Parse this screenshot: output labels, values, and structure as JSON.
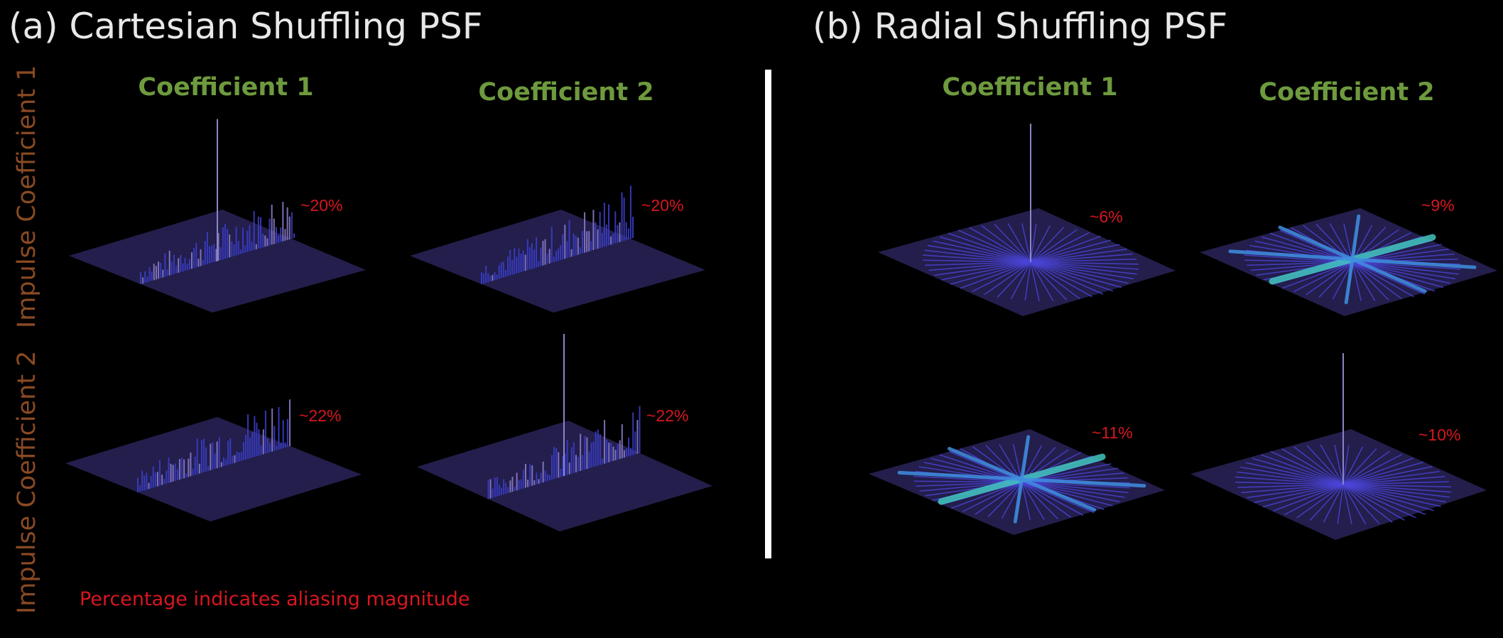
{
  "panels": {
    "a": {
      "title": "(a) Cartesian Shuffling PSF"
    },
    "b": {
      "title": "(b) Radial Shuffling PSF"
    }
  },
  "columns": {
    "coef1": "Coefficient 1",
    "coef2": "Coefficient 2"
  },
  "rows": {
    "impulse1": "Impulse Coefficient 1",
    "impulse2": "Impulse Coefficient 2"
  },
  "note": "Percentage indicates aliasing magnitude",
  "aliasing": {
    "a_r1_c1": "~20%",
    "a_r1_c2": "~20%",
    "a_r2_c1": "~22%",
    "a_r2_c2": "~22%",
    "b_r1_c1": "~6%",
    "b_r1_c2": "~9%",
    "b_r2_c1": "~11%",
    "b_r2_c2": "~10%"
  },
  "colors": {
    "background": "#000000",
    "title": "#e8e8e8",
    "column_header": "#6e9a3e",
    "row_header": "#8a4a23",
    "annotation": "#d8161f",
    "floor": "#25204f",
    "spike": "#3a3ec8",
    "streak": "#43c6c0"
  }
}
